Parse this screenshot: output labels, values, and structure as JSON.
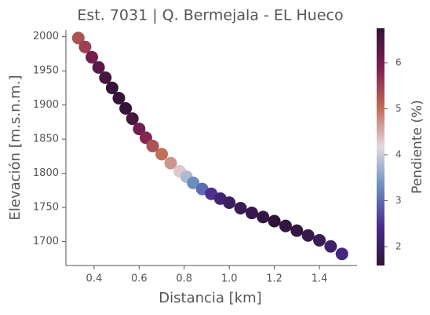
{
  "chart_data": {
    "type": "scatter",
    "title": "Est. 7031 | Q. Bermejala - EL Hueco",
    "x_label": "Distancia [km]",
    "y_label": "Elevación [m.s.n.m.]",
    "colorbar_label": "Pendiente (%)",
    "x": [
      0.33,
      0.36,
      0.39,
      0.42,
      0.45,
      0.48,
      0.51,
      0.54,
      0.57,
      0.6,
      0.63,
      0.66,
      0.7,
      0.74,
      0.78,
      0.81,
      0.84,
      0.88,
      0.92,
      0.96,
      1.0,
      1.05,
      1.1,
      1.15,
      1.2,
      1.25,
      1.3,
      1.35,
      1.4,
      1.45,
      1.5
    ],
    "values": [
      1998,
      1985,
      1970,
      1955,
      1940,
      1925,
      1910,
      1895,
      1880,
      1865,
      1852,
      1840,
      1828,
      1815,
      1803,
      1795,
      1786,
      1777,
      1770,
      1763,
      1757,
      1749,
      1742,
      1736,
      1730,
      1723,
      1716,
      1709,
      1702,
      1693,
      1682
    ],
    "color_values": [
      5.3,
      5.5,
      6.0,
      6.3,
      6.5,
      6.7,
      6.7,
      6.7,
      6.5,
      6.0,
      5.8,
      5.3,
      5.0,
      4.7,
      4.3,
      3.8,
      3.3,
      3.0,
      2.5,
      2.2,
      2.0,
      1.9,
      1.8,
      1.7,
      1.6,
      1.7,
      1.7,
      1.8,
      1.9,
      2.1,
      2.3
    ],
    "colormap": [
      "#2f1436",
      "#4a2b8f",
      "#6a8fbf",
      "#e2d9e2",
      "#c06a55",
      "#7e1f52",
      "#2f1436"
    ],
    "xlim": [
      0.275,
      1.567
    ],
    "xticks": [
      {
        "value": 0.4,
        "label": "0.4"
      },
      {
        "value": 0.6,
        "label": "0.6"
      },
      {
        "value": 0.8,
        "label": "0.8"
      },
      {
        "value": 1.0,
        "label": "1.0"
      },
      {
        "value": 1.2,
        "label": "1.2"
      },
      {
        "value": 1.4,
        "label": "1.4"
      }
    ],
    "ylim": [
      1665,
      2010
    ],
    "yticks": [
      1700,
      1750,
      1800,
      1850,
      1900,
      1950,
      2000
    ],
    "clim": [
      1.59,
      6.75
    ],
    "cticks": [
      2,
      3,
      4,
      5,
      6
    ]
  }
}
